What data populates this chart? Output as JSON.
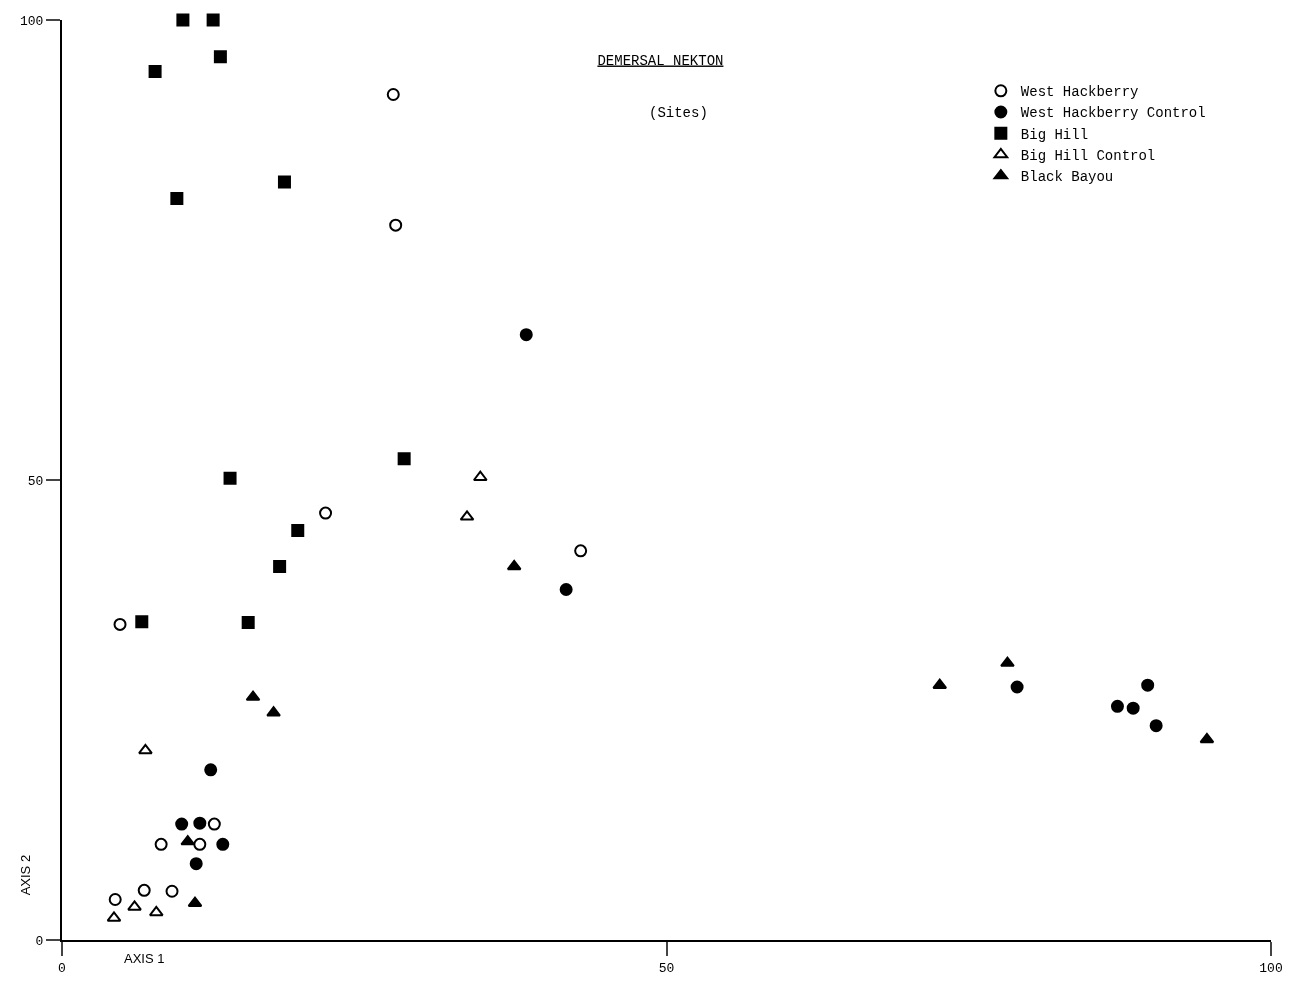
{
  "chart_data": {
    "type": "scatter",
    "title": "DEMERSAL NEKTON",
    "subtitle": "(Sites)",
    "xlabel": "AXIS 1",
    "ylabel": "AXIS 2",
    "xlim": [
      0,
      100
    ],
    "ylim": [
      0,
      100
    ],
    "xticks": [
      0,
      50,
      100
    ],
    "yticks": [
      0,
      50,
      100
    ],
    "legend": "top right",
    "series": [
      {
        "name": "West Hackberry",
        "color": "#000000",
        "marker": "circle-open",
        "x": [
          27.4,
          27.6,
          21.8,
          42.9,
          4.8,
          8.2,
          11.4,
          12.6,
          6.8,
          9.1,
          4.4
        ],
        "values": [
          91.9,
          77.7,
          46.4,
          42.3,
          34.3,
          10.4,
          10.4,
          12.6,
          5.4,
          5.3,
          4.4
        ]
      },
      {
        "name": "West Hackberry Control",
        "color": "#000000",
        "marker": "circle",
        "x": [
          38.4,
          41.7,
          12.3,
          9.9,
          11.4,
          11.1,
          13.3,
          79.0,
          87.3,
          88.6,
          89.8,
          90.5
        ],
        "values": [
          65.8,
          38.1,
          18.5,
          12.6,
          12.7,
          8.3,
          10.4,
          27.5,
          25.4,
          25.2,
          27.7,
          23.3
        ]
      },
      {
        "name": "Big Hill",
        "color": "#000000",
        "marker": "square",
        "x": [
          10.0,
          12.5,
          7.7,
          13.1,
          9.5,
          18.4,
          28.3,
          13.9,
          19.5,
          18.0,
          6.6,
          15.4
        ],
        "values": [
          100,
          100,
          94.4,
          96.0,
          80.6,
          82.4,
          52.3,
          50.2,
          44.5,
          40.6,
          34.6,
          34.5
        ]
      },
      {
        "name": "Big Hill Control",
        "color": "#000000",
        "marker": "triangle-open",
        "x": [
          34.6,
          33.5,
          6.9,
          4.3,
          6.0,
          7.8
        ],
        "values": [
          50.3,
          46.0,
          20.6,
          2.4,
          3.6,
          3.0
        ]
      },
      {
        "name": "Black Bayou",
        "color": "#000000",
        "marker": "triangle",
        "x": [
          37.4,
          15.8,
          17.5,
          10.4,
          11.0,
          72.6,
          78.2,
          94.7
        ],
        "values": [
          40.6,
          26.4,
          24.7,
          10.7,
          4.0,
          27.7,
          30.1,
          21.8
        ]
      }
    ]
  }
}
